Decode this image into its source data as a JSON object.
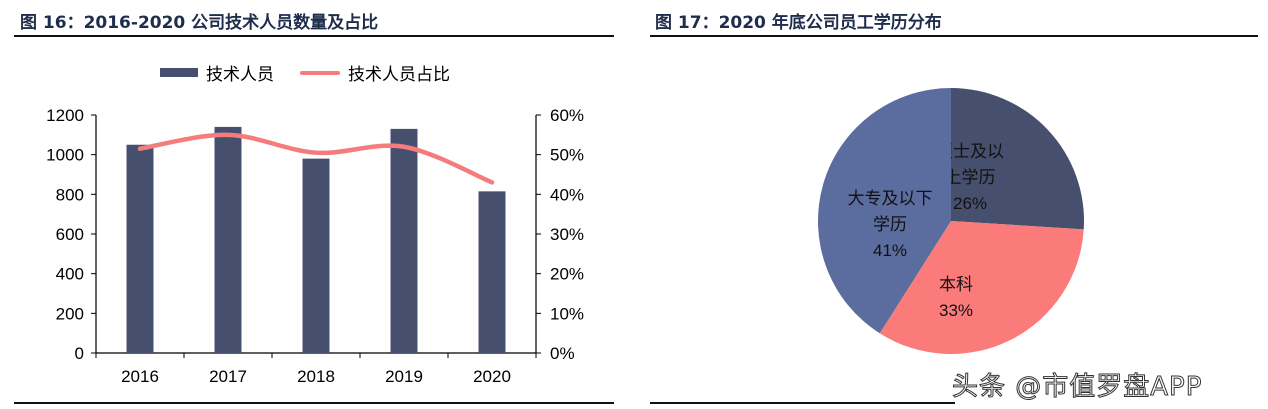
{
  "figure16": {
    "title": "图 16：2016-2020 公司技术人员数量及占比",
    "legend": {
      "bar": "技术人员",
      "line": "技术人员占比"
    }
  },
  "figure17": {
    "title": "图 17：2020 年底公司员工学历分布"
  },
  "watermark": "头条 @市值罗盘APP",
  "colors": {
    "bar": "#46506e",
    "line": "#f57c7c",
    "pie_master": "#46506e",
    "pie_bachelor": "#fb7b7b",
    "pie_college": "#5b6c9e",
    "title": "#1f2d4d"
  },
  "chart_data": [
    {
      "type": "bar+line",
      "title": "图 16：2016-2020 公司技术人员数量及占比",
      "categories": [
        "2016",
        "2017",
        "2018",
        "2019",
        "2020"
      ],
      "series": [
        {
          "name": "技术人员",
          "type": "bar",
          "axis": "left",
          "values": [
            1050,
            1140,
            980,
            1130,
            815
          ]
        },
        {
          "name": "技术人员占比",
          "type": "line",
          "axis": "right",
          "values": [
            0.515,
            0.55,
            0.505,
            0.52,
            0.43
          ]
        }
      ],
      "ylim_left": [
        0,
        1200
      ],
      "yticks_left": [
        "0",
        "200",
        "400",
        "600",
        "800",
        "1000",
        "1200"
      ],
      "ylim_right": [
        0,
        0.6
      ],
      "yticks_right": [
        "0%",
        "10%",
        "20%",
        "30%",
        "40%",
        "50%",
        "60%"
      ],
      "legend_position": "top",
      "grid": false
    },
    {
      "type": "pie",
      "title": "图 17：2020 年底公司员工学历分布",
      "slices": [
        {
          "label": "硕士及以上学历",
          "label_lines": [
            "硕士及以",
            "上学历"
          ],
          "value": 26,
          "pct": "26%"
        },
        {
          "label": "本科",
          "label_lines": [
            "本科"
          ],
          "value": 33,
          "pct": "33%"
        },
        {
          "label": "大专及以下学历",
          "label_lines": [
            "大专及以下",
            "学历"
          ],
          "value": 41,
          "pct": "41%"
        }
      ]
    }
  ]
}
